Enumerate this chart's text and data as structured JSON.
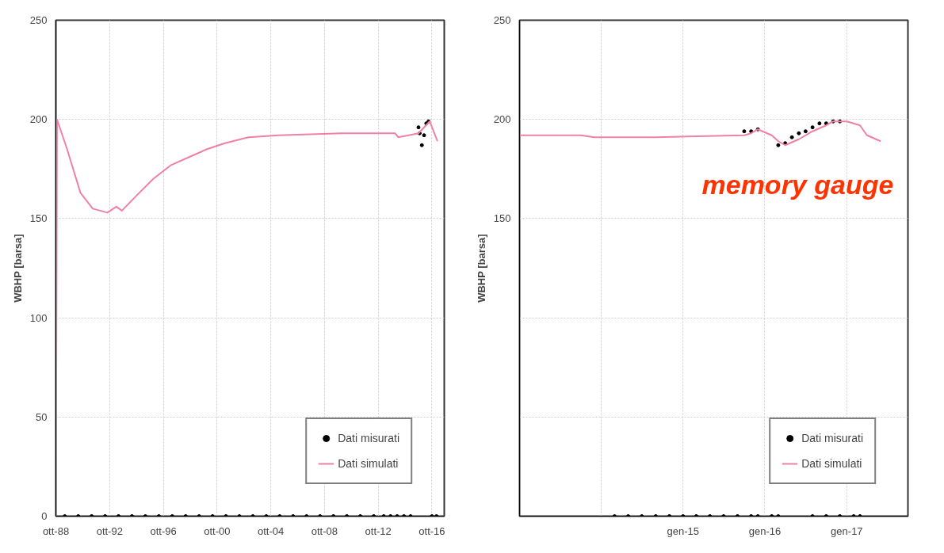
{
  "chart_data": [
    {
      "type": "line",
      "ylabel": "WBHP [barsa]",
      "xlim": [
        "1988-10",
        "2017-09"
      ],
      "ylim": [
        0,
        250
      ],
      "yticks": [
        0,
        50,
        100,
        150,
        200,
        250
      ],
      "xticks": [
        {
          "value": "1988-10",
          "label": "ott-88"
        },
        {
          "value": "1992-10",
          "label": "ott-92"
        },
        {
          "value": "1996-10",
          "label": "ott-96"
        },
        {
          "value": "2000-10",
          "label": "ott-00"
        },
        {
          "value": "2004-10",
          "label": "ott-04"
        },
        {
          "value": "2008-10",
          "label": "ott-08"
        },
        {
          "value": "2012-10",
          "label": "ott-12"
        },
        {
          "value": "2016-10",
          "label": "ott-16"
        }
      ],
      "grid": true,
      "legend": "bottom right",
      "series": [
        {
          "name": "Dati misurati",
          "type": "scatter",
          "marker": "circle",
          "color": "#000000",
          "x": [
            "1989-06",
            "1990-06",
            "1991-06",
            "1992-06",
            "1993-06",
            "1994-06",
            "1995-06",
            "1996-06",
            "1997-06",
            "1998-06",
            "1999-06",
            "2000-06",
            "2001-06",
            "2002-06",
            "2003-06",
            "2004-06",
            "2005-06",
            "2006-06",
            "2007-06",
            "2008-06",
            "2009-06",
            "2010-06",
            "2011-06",
            "2012-06",
            "2013-03",
            "2013-09",
            "2014-03",
            "2014-09",
            "2015-03",
            "2015-10",
            "2015-11",
            "2016-01",
            "2016-03",
            "2016-05",
            "2016-07",
            "2016-10",
            "2017-02"
          ],
          "values": [
            0,
            0,
            0,
            0,
            0,
            0,
            0,
            0,
            0,
            0,
            0,
            0,
            0,
            0,
            0,
            0,
            0,
            0,
            0,
            0,
            0,
            0,
            0,
            0,
            0,
            0,
            0,
            0,
            0,
            196,
            193,
            187,
            192,
            198,
            199,
            0,
            0
          ]
        },
        {
          "name": "Dati simulati",
          "color": "#f080a8",
          "x": [
            "1988-10",
            "1988-11",
            "1989-08",
            "1990-08",
            "1991-07",
            "1992-08",
            "1993-04",
            "1993-09",
            "1994-09",
            "1996-01",
            "1997-05",
            "1998-09",
            "2000-01",
            "2001-05",
            "2003-02",
            "2005-05",
            "2010-01",
            "2014-01",
            "2014-04",
            "2015-10",
            "2016-08",
            "2017-03"
          ],
          "values": [
            0,
            200,
            185,
            163,
            155,
            153,
            156,
            154,
            161,
            170,
            177,
            181,
            185,
            188,
            191,
            192,
            193,
            193,
            191,
            193,
            199,
            189
          ]
        }
      ]
    },
    {
      "type": "line",
      "ylabel": "WBHP [barsa]",
      "xlim": [
        "2013-01",
        "2017-10"
      ],
      "ylim": [
        0,
        250
      ],
      "yticks": [
        {
          "value": 0,
          "label": null
        },
        {
          "value": 50,
          "label": null
        },
        {
          "value": 100,
          "label": null
        },
        150,
        200,
        250
      ],
      "xticks": [
        {
          "value": "2014-01",
          "label": null
        },
        {
          "value": "2015-01",
          "label": "gen-15"
        },
        {
          "value": "2016-01",
          "label": "gen-16"
        },
        {
          "value": "2017-01",
          "label": "gen-17"
        }
      ],
      "grid": true,
      "legend": "bottom right",
      "annotations": [
        "memory gauge"
      ],
      "series": [
        {
          "name": "Dati misurati",
          "type": "scatter",
          "marker": "circle",
          "color": "#000000",
          "x": [
            "2014-03",
            "2014-05",
            "2014-07",
            "2014-09",
            "2014-11",
            "2015-01",
            "2015-03",
            "2015-05",
            "2015-07",
            "2015-09",
            "2015-11",
            "2015-12",
            "2016-02",
            "2016-03",
            "2016-08",
            "2016-10",
            "2016-12",
            "2017-02",
            "2017-03",
            "2015-10",
            "2015-11",
            "2015-12",
            "2016-03",
            "2016-04",
            "2016-05",
            "2016-06",
            "2016-07",
            "2016-08",
            "2016-09",
            "2016-10",
            "2016-11",
            "2016-12"
          ],
          "values": [
            0,
            0,
            0,
            0,
            0,
            0,
            0,
            0,
            0,
            0,
            0,
            0,
            0,
            0,
            0,
            0,
            0,
            0,
            0,
            194,
            194,
            195,
            187,
            188,
            191,
            193,
            194,
            196,
            198,
            198,
            199,
            199
          ]
        },
        {
          "name": "Dati simulati",
          "color": "#f080a8",
          "x": [
            "2013-01",
            "2013-10",
            "2013-12",
            "2014-09",
            "2015-03",
            "2015-10",
            "2015-11",
            "2015-12",
            "2016-02",
            "2016-03",
            "2016-04",
            "2016-06",
            "2016-08",
            "2016-10",
            "2016-11",
            "2017-01",
            "2017-03",
            "2017-04",
            "2017-06"
          ],
          "values": [
            192,
            192,
            191,
            191,
            191.5,
            192,
            193,
            195,
            192,
            189,
            187,
            190,
            194,
            197,
            199,
            199,
            197,
            192,
            189
          ]
        }
      ]
    }
  ]
}
